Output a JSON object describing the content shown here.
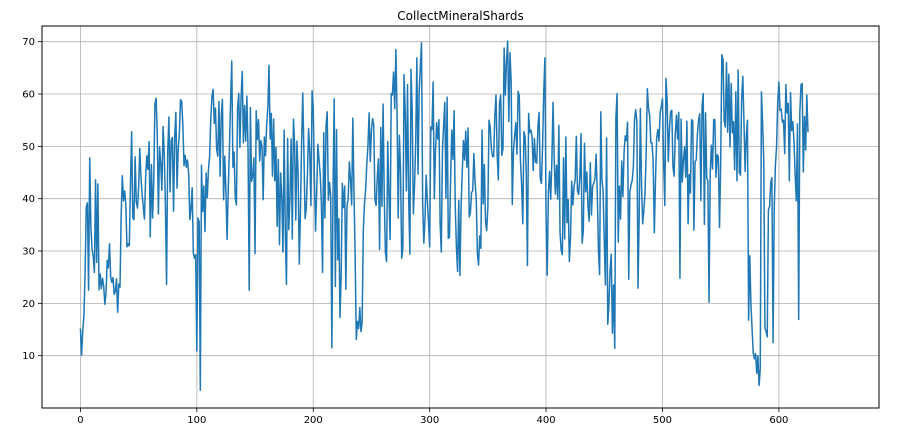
{
  "chart_data": {
    "type": "line",
    "title": "CollectMineralShards",
    "xlabel": "",
    "ylabel": "",
    "xlim": [
      -33,
      686
    ],
    "ylim": [
      0,
      73
    ],
    "xticks": [
      0,
      100,
      200,
      300,
      400,
      500,
      600
    ],
    "yticks": [
      10,
      20,
      30,
      40,
      50,
      60,
      70
    ],
    "grid": true,
    "color": "#1f77b4",
    "series": [
      {
        "x_start": 0,
        "x_step": 1,
        "values": [
          15.2,
          10.1,
          14.8,
          17.5,
          25.7,
          38.4,
          39.2,
          22.5,
          47.8,
          34.6,
          30.3,
          29.0,
          25.9,
          43.6,
          27.8,
          42.8,
          22.6,
          25.6,
          22.8,
          24.8,
          23.3,
          19.8,
          22.1,
          28.2,
          26.8,
          31.4,
          25.1,
          24.0,
          24.9,
          21.7,
          22.3,
          24.7,
          18.3,
          23.7,
          23.1,
          36.8,
          44.4,
          39.6,
          41.5,
          38.9,
          30.8,
          31.4,
          31.0,
          42.9,
          52.8,
          36.3,
          36.0,
          48.0,
          39.4,
          38.2,
          42.1,
          49.6,
          44.1,
          40.9,
          38.5,
          36.1,
          44.0,
          48.2,
          45.6,
          50.9,
          32.7,
          46.5,
          36.3,
          43.5,
          58.1,
          59.2,
          52.6,
          37.1,
          49.9,
          46.7,
          41.6,
          53.8,
          48.7,
          38.8,
          23.6,
          48.9,
          55.6,
          41.3,
          51.2,
          51.7,
          37.6,
          51.9,
          56.5,
          42.0,
          49.5,
          52.5,
          58.9,
          58.6,
          54.0,
          46.3,
          48.3,
          46.0,
          47.4,
          44.7,
          36.0,
          38.0,
          42.1,
          29.6,
          28.6,
          29.3,
          10.9,
          36.3,
          35.6,
          3.4,
          46.4,
          37.5,
          42.4,
          33.7,
          44.9,
          40.2,
          45.6,
          48.1,
          55.3,
          59.6,
          60.9,
          54.4,
          57.3,
          49.5,
          48.1,
          58.6,
          44.3,
          55.9,
          59.0,
          39.8,
          48.1,
          41.3,
          32.2,
          42.0,
          49.3,
          58.7,
          66.3,
          46.0,
          48.9,
          40.2,
          38.8,
          57.2,
          60.1,
          49.8,
          59.1,
          64.3,
          50.7,
          57.8,
          51.0,
          59.6,
          49.2,
          22.5,
          57.4,
          43.3,
          44.3,
          47.8,
          29.5,
          56.8,
          51.3,
          55.1,
          47.2,
          51.1,
          49.9,
          39.8,
          51.8,
          48.2,
          54.0,
          57.4,
          65.5,
          51.4,
          56.3,
          44.3,
          55.2,
          43.4,
          49.8,
          34.7,
          47.5,
          31.2,
          44.9,
          40.2,
          29.8,
          53.1,
          33.5,
          23.6,
          51.5,
          34.1,
          40.3,
          51.4,
          32.3,
          55.2,
          50.5,
          35.9,
          51.0,
          44.8,
          27.5,
          37.4,
          50.6,
          60.2,
          48.6,
          36.2,
          38.1,
          44.6,
          53.4,
          48.9,
          38.7,
          60.6,
          57.5,
          43.9,
          33.8,
          41.7,
          50.4,
          47.4,
          44.6,
          39.1,
          25.9,
          52.6,
          36.3,
          54.0,
          56.6,
          39.7,
          43.1,
          40.5,
          11.5,
          41.4,
          59.1,
          23.2,
          53.2,
          28.3,
          36.2,
          17.3,
          25.6,
          42.9,
          38.3,
          42.4,
          22.7,
          38.7,
          39.9,
          47.0,
          43.8,
          38.8,
          55.4,
          41.3,
          28.8,
          13.1,
          16.5,
          15.2,
          19.2,
          14.6,
          16.4,
          33.9,
          39.0,
          41.6,
          46.6,
          50.1,
          56.4,
          47.1,
          53.1,
          55.3,
          54.0,
          39.8,
          38.7,
          44.1,
          47.6,
          30.3,
          53.6,
          38.5,
          58.1,
          40.4,
          29.7,
          28.0,
          50.9,
          40.9,
          32.2,
          60.1,
          59.8,
          64.2,
          57.2,
          68.5,
          56.1,
          36.3,
          52.1,
          45.4,
          28.6,
          30.6,
          63.7,
          56.9,
          41.5,
          61.8,
          39.9,
          29.4,
          64.7,
          56.8,
          37.1,
          42.4,
          50.4,
          66.9,
          44.7,
          60.3,
          65.3,
          69.8,
          39.1,
          31.5,
          36.1,
          44.5,
          39.8,
          35.6,
          30.8,
          53.7,
          53.2,
          62.3,
          40.0,
          49.0,
          54.5,
          51.4,
          55.1,
          35.2,
          29.8,
          49.3,
          53.9,
          58.4,
          40.1,
          59.4,
          32.4,
          32.6,
          43.7,
          53.1,
          47.5,
          56.8,
          38.5,
          30.7,
          26.1,
          39.7,
          25.3,
          38.6,
          45.0,
          51.1,
          47.4,
          52.9,
          46.0,
          53.5,
          36.5,
          37.3,
          41.2,
          41.5,
          48.6,
          43.3,
          40.0,
          29.5,
          27.3,
          32.9,
          30.5,
          53.1,
          39.0,
          46.5,
          35.7,
          33.9,
          38.4,
          55.0,
          53.7,
          49.6,
          48.1,
          48.0,
          55.8,
          59.8,
          48.3,
          43.6,
          58.3,
          59.8,
          48.3,
          49.6,
          68.8,
          59.8,
          66.2,
          70.1,
          54.7,
          67.9,
          62.6,
          38.9,
          49.1,
          52.0,
          54.5,
          48.5,
          60.5,
          59.7,
          47.3,
          42.7,
          35.2,
          52.8,
          51.9,
          44.6,
          27.2,
          56.3,
          52.6,
          53.1,
          51.8,
          45.4,
          51.5,
          47.0,
          46.8,
          53.7,
          56.5,
          43.9,
          42.9,
          49.9,
          60.2,
          66.9,
          36.7,
          25.4,
          41.2,
          45.2,
          39.9,
          47.3,
          58.4,
          47.5,
          40.9,
          46.4,
          39.9,
          54.0,
          33.6,
          30.1,
          29.3,
          47.8,
          32.3,
          51.8,
          35.4,
          39.8,
          28.0,
          32.5,
          43.3,
          38.8,
          42.3,
          43.6,
          51.9,
          41.5,
          40.8,
          44.0,
          52.4,
          31.5,
          33.9,
          50.6,
          41.3,
          45.1,
          38.6,
          35.7,
          46.9,
          36.9,
          42.4,
          43.0,
          43.8,
          48.5,
          41.3,
          30.1,
          25.5,
          56.6,
          43.5,
          41.6,
          31.6,
          23.5,
          51.6,
          16.0,
          19.8,
          26.4,
          29.4,
          14.3,
          23.5,
          11.4,
          55.5,
          60.1,
          31.7,
          42.4,
          36.1,
          47.2,
          40.4,
          48.8,
          52.0,
          51.1,
          54.6,
          24.6,
          41.3,
          42.7,
          43.5,
          46.1,
          55.2,
          57.0,
          54.8,
          22.9,
          36.9,
          57.2,
          42.6,
          35.2,
          37.8,
          41.1,
          48.7,
          61.0,
          57.3,
          55.8,
          50.7,
          50.7,
          47.0,
          33.5,
          43.6,
          51.5,
          53.2,
          51.0,
          56.5,
          57.6,
          59.1,
          46.8,
          38.7,
          63.0,
          58.8,
          47.1,
          53.3,
          56.6,
          56.9,
          46.1,
          44.3,
          52.5,
          56.0,
          51.4,
          56.5,
          24.8,
          55.2,
          43.2,
          47.3,
          49.9,
          44.1,
          54.8,
          35.2,
          44.6,
          41.1,
          55.1,
          54.8,
          34.0,
          47.1,
          47.4,
          52.3,
          55.0,
          56.2,
          39.6,
          57.7,
          60.1,
          35.1,
          56.4,
          44.0,
          43.4,
          20.2,
          44.7,
          50.2,
          45.7,
          55.1,
          55.1,
          44.1,
          48.4,
          48.0,
          34.5,
          46.7,
          67.5,
          66.6,
          55.0,
          53.7,
          66.0,
          52.7,
          63.8,
          49.9,
          62.0,
          52.6,
          54.7,
          45.5,
          60.4,
          43.4,
          64.6,
          45.0,
          44.5,
          59.0,
          63.4,
          54.6,
          45.2,
          52.0,
          55.0,
          16.8,
          29.1,
          19.8,
          15.0,
          10.5,
          9.4,
          10.4,
          6.6,
          10.0,
          4.3,
          7.5,
          60.4,
          54.5,
          47.2,
          15.3,
          14.6,
          13.6,
          37.8,
          38.5,
          43.1,
          44.0,
          12.5,
          38.1,
          46.4,
          49.9,
          58.5,
          62.3,
          56.9,
          57.1,
          54.6,
          55.0,
          48.6,
          61.8,
          56.4,
          58.2,
          43.4,
          60.3,
          53.0,
          54.7,
          50.9,
          44.4,
          39.6,
          54.3,
          16.9,
          56.5,
          61.8,
          62.0,
          45.1,
          55.7,
          49.3,
          59.8,
          52.7
        ]
      }
    ]
  }
}
